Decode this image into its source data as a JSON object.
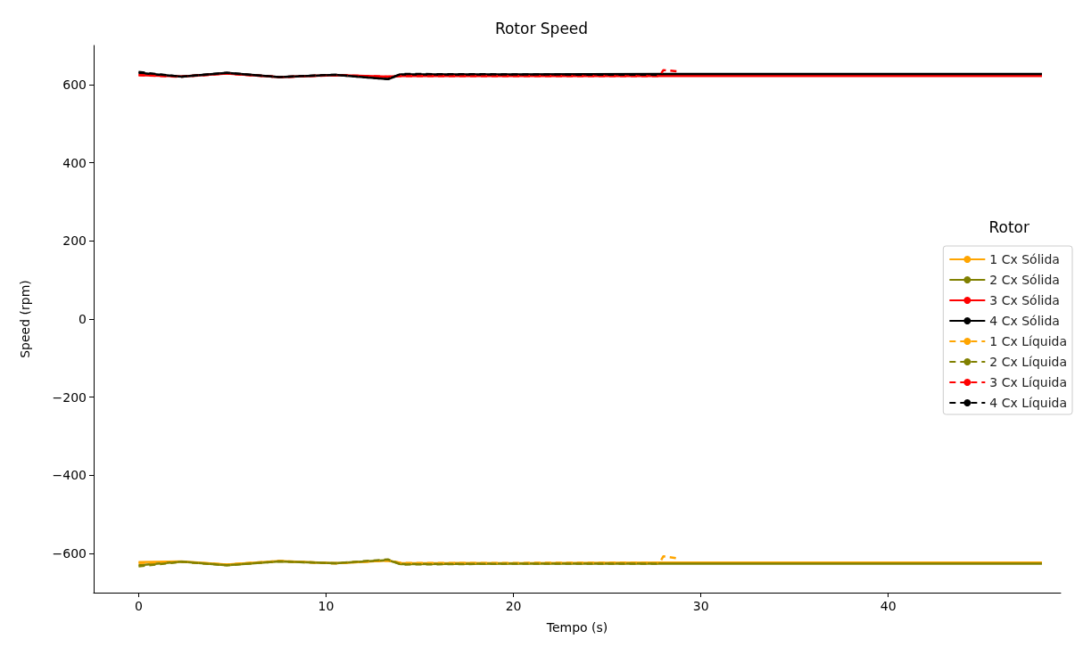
{
  "chart_data": {
    "type": "line",
    "title": "Rotor Speed",
    "xlabel": "Tempo (s)",
    "ylabel": "Speed (rpm)",
    "legend_title": "Rotor",
    "legend": "right",
    "marker": "none",
    "grid": false,
    "xlim": [
      -2.4,
      49.2
    ],
    "xticks": [
      0,
      10,
      20,
      30,
      40
    ],
    "ylim": [
      -700,
      700
    ],
    "yticks": [
      {
        "value": -600,
        "label": "−600"
      },
      {
        "value": -400,
        "label": "−400"
      },
      {
        "value": -200,
        "label": "−200"
      },
      0,
      200,
      400,
      600
    ],
    "series": [
      {
        "name": "1 Cx Sólida",
        "color": "#ffa500",
        "line_style": "solid",
        "x": [
          0,
          2.3,
          4.7,
          7.5,
          10.5,
          13.3,
          14,
          20,
          28,
          48.2
        ],
        "values": [
          -622,
          -620,
          -628,
          -619,
          -625,
          -618,
          -624,
          -625,
          -623,
          -623
        ]
      },
      {
        "name": "2 Cx Sólida",
        "color": "#808000",
        "line_style": "solid",
        "x": [
          0,
          2.3,
          4.7,
          7.5,
          10.5,
          13.3,
          14,
          20,
          28,
          48.2
        ],
        "values": [
          -630,
          -621,
          -630,
          -620,
          -625,
          -617,
          -627,
          -626,
          -626,
          -626
        ]
      },
      {
        "name": "3 Cx Sólida",
        "color": "#ff0000",
        "line_style": "solid",
        "x": [
          0,
          2.3,
          4.7,
          7.5,
          10.5,
          13.3,
          14,
          20,
          28,
          48.2
        ],
        "values": [
          624,
          621,
          628,
          619,
          624,
          620,
          622,
          622,
          622,
          622
        ]
      },
      {
        "name": "4 Cx Sólida",
        "color": "#000000",
        "line_style": "solid",
        "x": [
          0,
          2.3,
          4.7,
          7.5,
          10.5,
          13.3,
          14,
          20,
          28,
          48.2
        ],
        "values": [
          630,
          620,
          630,
          619,
          625,
          614,
          626,
          626,
          627,
          627
        ]
      },
      {
        "name": "1 Cx Líquida",
        "color": "#ffa500",
        "line_style": "dashed",
        "x": [
          0,
          2.3,
          4.7,
          7.5,
          10.5,
          13.3,
          14,
          20,
          27.8,
          28,
          28.7
        ],
        "values": [
          -624,
          -621,
          -628,
          -619,
          -625,
          -618,
          -624,
          -624,
          -623,
          -607,
          -612
        ]
      },
      {
        "name": "2 Cx Líquida",
        "color": "#808000",
        "line_style": "dashed",
        "x": [
          0,
          2.3,
          4.7,
          7.5,
          10.5,
          13.3,
          14,
          20,
          27.8
        ],
        "values": [
          -633,
          -621,
          -630,
          -620,
          -625,
          -615,
          -628,
          -626,
          -626
        ]
      },
      {
        "name": "3 Cx Líquida",
        "color": "#ff0000",
        "line_style": "dashed",
        "x": [
          0,
          2.3,
          4.7,
          7.5,
          10.5,
          13.3,
          14,
          20,
          27.8,
          28,
          28.7
        ],
        "values": [
          624,
          620,
          628,
          619,
          624,
          620,
          622,
          622,
          622,
          637,
          634
        ]
      },
      {
        "name": "4 Cx Líquida",
        "color": "#000000",
        "line_style": "dashed",
        "x": [
          0,
          2.3,
          4.7,
          7.5,
          10.5,
          13.3,
          14,
          20,
          27.8
        ],
        "values": [
          632,
          620,
          630,
          619,
          625,
          614,
          627,
          626,
          625
        ]
      }
    ]
  }
}
